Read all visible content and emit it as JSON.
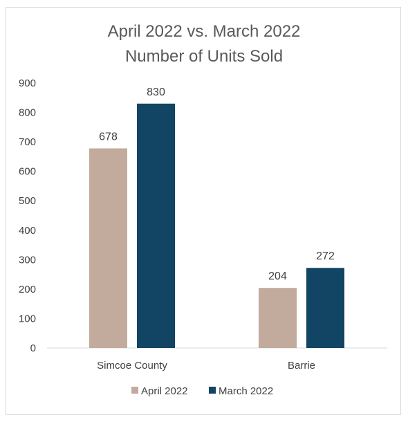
{
  "chart_data": {
    "type": "bar",
    "title": [
      "April 2022 vs. March 2022",
      "Number of Units Sold"
    ],
    "categories": [
      "Simcoe County",
      "Barrie"
    ],
    "series": [
      {
        "name": "April 2022",
        "values": [
          678,
          204
        ],
        "color": "#c2ab9c"
      },
      {
        "name": "March 2022",
        "values": [
          830,
          272
        ],
        "color": "#124463"
      }
    ],
    "ylim": [
      0,
      900
    ],
    "yticks": [
      "0",
      "100",
      "200",
      "300",
      "400",
      "500",
      "600",
      "700",
      "800",
      "900"
    ],
    "grid": false,
    "legend_position": "bottom",
    "axis_color": "#d9d9d9"
  }
}
